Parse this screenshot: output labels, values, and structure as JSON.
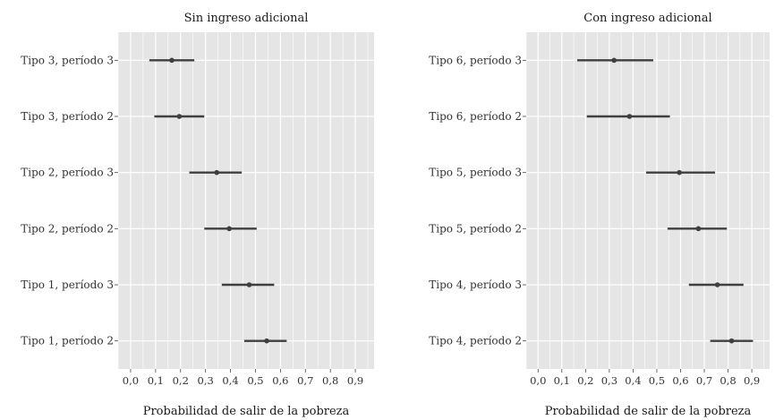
{
  "chart_data": [
    {
      "type": "errorbar",
      "title": "Sin ingreso adicional",
      "xlabel": "Probabilidad de salir de la pobreza",
      "xlim": [
        -0.05,
        0.975
      ],
      "xticks": [
        "0,0",
        "0,1",
        "0,2",
        "0,3",
        "0,4",
        "0,5",
        "0,6",
        "0,7",
        "0,8",
        "0,9"
      ],
      "grid": true,
      "categories": [
        "Tipo 3, período 3",
        "Tipo 3, período 2",
        "Tipo 2, período 3",
        "Tipo 2, período 2",
        "Tipo 1, período 3",
        "Tipo 1, período 2"
      ],
      "estimates": [
        0.165,
        0.195,
        0.345,
        0.395,
        0.475,
        0.545
      ],
      "lower": [
        0.075,
        0.095,
        0.235,
        0.295,
        0.365,
        0.455
      ],
      "upper": [
        0.255,
        0.295,
        0.445,
        0.505,
        0.575,
        0.625
      ]
    },
    {
      "type": "errorbar",
      "title": "Con ingreso adicional",
      "xlabel": "Probabilidad de salir de la pobreza",
      "xlim": [
        -0.05,
        0.975
      ],
      "xticks": [
        "0,0",
        "0,1",
        "0,2",
        "0,3",
        "0,4",
        "0,5",
        "0,6",
        "0,7",
        "0,8",
        "0,9"
      ],
      "grid": true,
      "categories": [
        "Tipo 6, período 3",
        "Tipo 6, período 2",
        "Tipo 5, período 3",
        "Tipo 5, período 2",
        "Tipo 4, período 3",
        "Tipo 4, período 2"
      ],
      "estimates": [
        0.32,
        0.385,
        0.595,
        0.675,
        0.755,
        0.815
      ],
      "lower": [
        0.165,
        0.205,
        0.455,
        0.545,
        0.635,
        0.725
      ],
      "upper": [
        0.485,
        0.555,
        0.745,
        0.795,
        0.865,
        0.905
      ]
    }
  ],
  "colors": {
    "panel_background": "#e5e5e5",
    "grid_line": "#ffffff",
    "point_and_interval": "#3f3f3f",
    "text": "#333333"
  }
}
